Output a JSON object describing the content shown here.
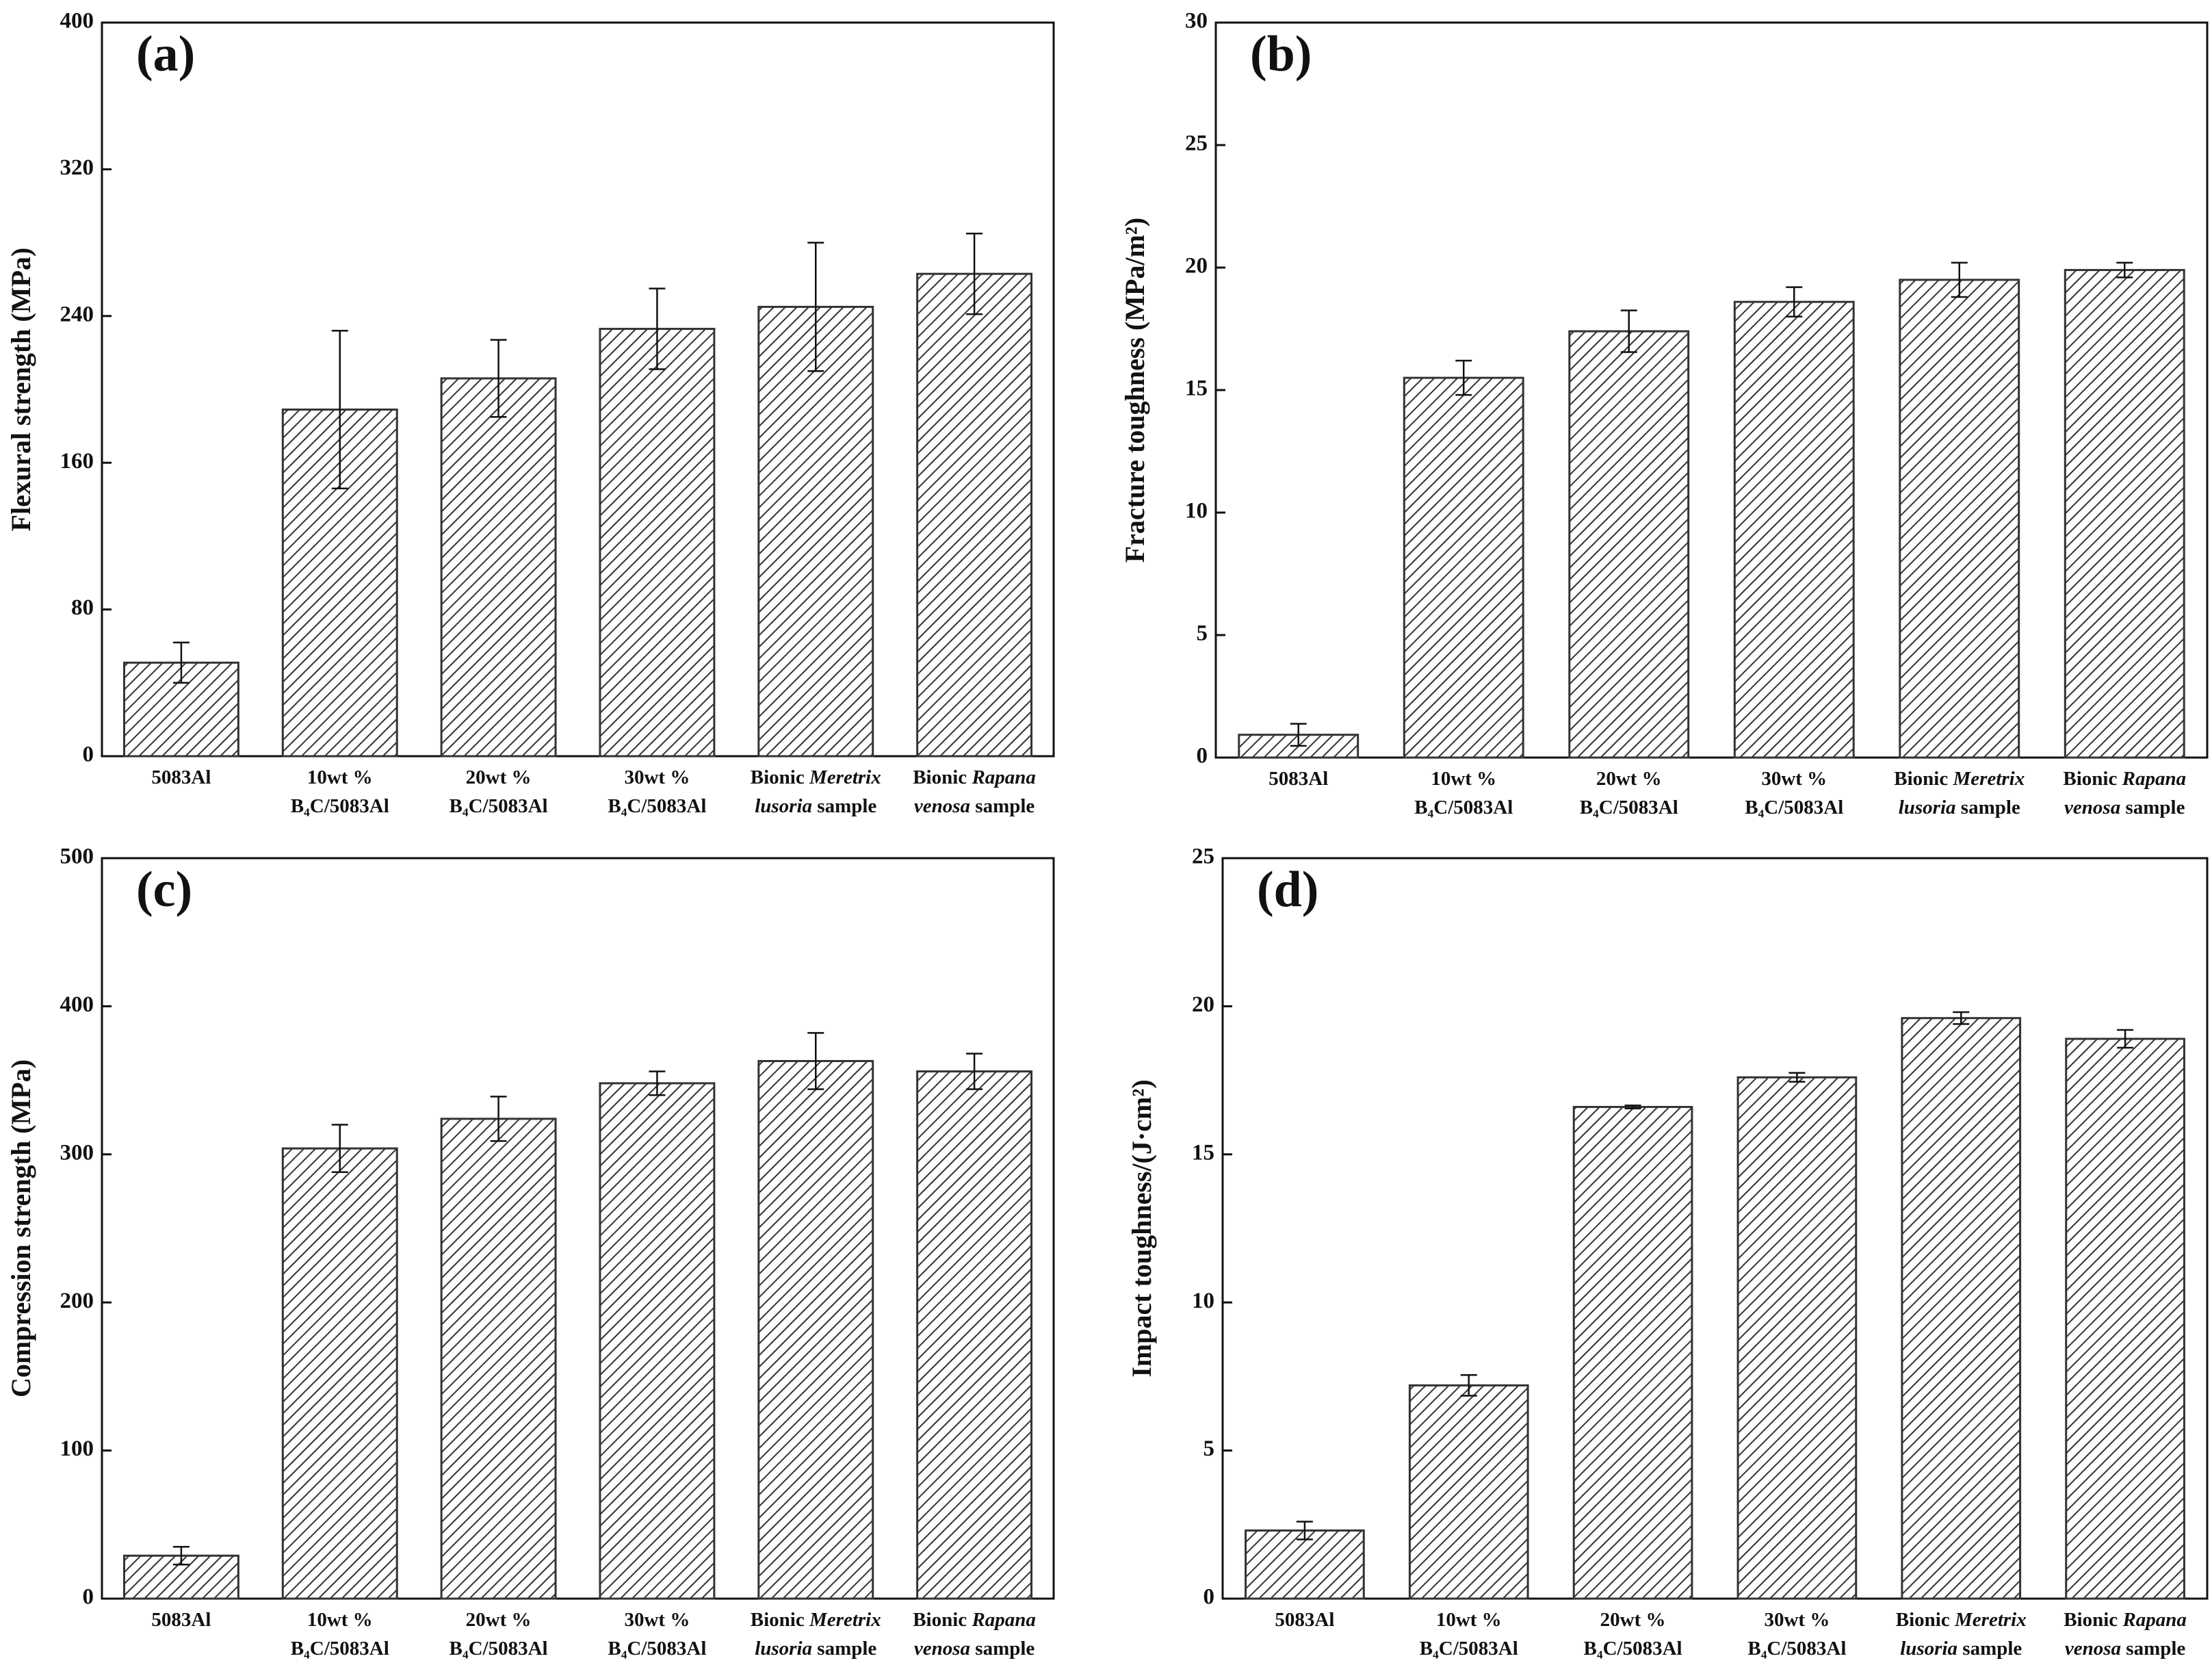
{
  "chart_data": [
    {
      "type": "bar",
      "title": "(a)",
      "y_label": "Flexural strength (MPa)",
      "categories": [
        [
          [
            {
              "text": "5083Al"
            }
          ]
        ],
        [
          [
            {
              "text": "10wt %"
            }
          ],
          [
            {
              "text": "B₄C/5083Al"
            }
          ]
        ],
        [
          [
            {
              "text": "20wt %"
            }
          ],
          [
            {
              "text": "B₄C/5083Al"
            }
          ]
        ],
        [
          [
            {
              "text": "30wt %"
            }
          ],
          [
            {
              "text": "B₄C/5083Al"
            }
          ]
        ],
        [
          [
            {
              "text": "Bionic "
            },
            {
              "text": "Meretrix",
              "italic": true
            }
          ],
          [
            {
              "text": "lusoria",
              "italic": true
            },
            {
              "text": " sample"
            }
          ]
        ],
        [
          [
            {
              "text": "Bionic "
            },
            {
              "text": "Rapana",
              "italic": true
            }
          ],
          [
            {
              "text": "venosa",
              "italic": true
            },
            {
              "text": " sample"
            }
          ]
        ]
      ],
      "values": [
        51,
        189,
        206,
        233,
        245,
        263
      ],
      "errors": [
        11,
        43,
        21,
        22,
        35,
        22
      ],
      "ylim": [
        0,
        400
      ],
      "yticks": [
        0,
        80,
        160,
        240,
        320,
        400
      ],
      "color": "#333333"
    },
    {
      "type": "bar",
      "title": "(b)",
      "y_label": "Fracture toughness (MPa/m²)",
      "categories": [
        [
          [
            {
              "text": "5083Al"
            }
          ]
        ],
        [
          [
            {
              "text": "10wt %"
            }
          ],
          [
            {
              "text": "B₄C/5083Al"
            }
          ]
        ],
        [
          [
            {
              "text": "20wt %"
            }
          ],
          [
            {
              "text": "B₄C/5083Al"
            }
          ]
        ],
        [
          [
            {
              "text": "30wt %"
            }
          ],
          [
            {
              "text": "B₄C/5083Al"
            }
          ]
        ],
        [
          [
            {
              "text": "Bionic "
            },
            {
              "text": "Meretrix",
              "italic": true
            }
          ],
          [
            {
              "text": "lusoria",
              "italic": true
            },
            {
              "text": " sample"
            }
          ]
        ],
        [
          [
            {
              "text": "Bionic "
            },
            {
              "text": "Rapana",
              "italic": true
            }
          ],
          [
            {
              "text": "venosa",
              "italic": true
            },
            {
              "text": " sample"
            }
          ]
        ]
      ],
      "values": [
        0.93,
        15.5,
        17.4,
        18.6,
        19.5,
        19.9
      ],
      "errors": [
        0.45,
        0.7,
        0.85,
        0.6,
        0.7,
        0.3
      ],
      "ylim": [
        0,
        30
      ],
      "yticks": [
        0,
        5,
        10,
        15,
        20,
        25,
        30
      ],
      "color": "#333333"
    },
    {
      "type": "bar",
      "title": "(c)",
      "y_label": "Compression strength (MPa)",
      "categories": [
        [
          [
            {
              "text": "5083Al"
            }
          ]
        ],
        [
          [
            {
              "text": "10wt %"
            }
          ],
          [
            {
              "text": "B₄C/5083Al"
            }
          ]
        ],
        [
          [
            {
              "text": "20wt %"
            }
          ],
          [
            {
              "text": "B₄C/5083Al"
            }
          ]
        ],
        [
          [
            {
              "text": "30wt %"
            }
          ],
          [
            {
              "text": "B₄C/5083Al"
            }
          ]
        ],
        [
          [
            {
              "text": "Bionic "
            },
            {
              "text": "Meretrix",
              "italic": true
            }
          ],
          [
            {
              "text": "lusoria",
              "italic": true
            },
            {
              "text": " sample"
            }
          ]
        ],
        [
          [
            {
              "text": "Bionic "
            },
            {
              "text": "Rapana",
              "italic": true
            }
          ],
          [
            {
              "text": "venosa",
              "italic": true
            },
            {
              "text": " sample"
            }
          ]
        ]
      ],
      "values": [
        29,
        304,
        324,
        348,
        363,
        356
      ],
      "errors": [
        6,
        16,
        15,
        8,
        19,
        12
      ],
      "ylim": [
        0,
        500
      ],
      "yticks": [
        0,
        100,
        200,
        300,
        400,
        500
      ],
      "color": "#333333"
    },
    {
      "type": "bar",
      "title": "(d)",
      "y_label": "Impact toughness/(J·cm²)",
      "categories": [
        [
          [
            {
              "text": "5083Al"
            }
          ]
        ],
        [
          [
            {
              "text": "10wt %"
            }
          ],
          [
            {
              "text": "B₄C/5083Al"
            }
          ]
        ],
        [
          [
            {
              "text": "20wt %"
            }
          ],
          [
            {
              "text": "B₄C/5083Al"
            }
          ]
        ],
        [
          [
            {
              "text": "30wt %"
            }
          ],
          [
            {
              "text": "B₄C/5083Al"
            }
          ]
        ],
        [
          [
            {
              "text": "Bionic "
            },
            {
              "text": "Meretrix",
              "italic": true
            }
          ],
          [
            {
              "text": "lusoria",
              "italic": true
            },
            {
              "text": " sample"
            }
          ]
        ],
        [
          [
            {
              "text": "Bionic "
            },
            {
              "text": "Rapana",
              "italic": true
            }
          ],
          [
            {
              "text": "venosa",
              "italic": true
            },
            {
              "text": " sample"
            }
          ]
        ]
      ],
      "values": [
        2.3,
        7.2,
        16.6,
        17.6,
        19.6,
        18.9
      ],
      "errors": [
        0.3,
        0.35,
        0.05,
        0.15,
        0.2,
        0.3
      ],
      "ylim": [
        0,
        25
      ],
      "yticks": [
        0,
        5,
        10,
        15,
        20,
        25
      ],
      "color": "#333333"
    }
  ]
}
